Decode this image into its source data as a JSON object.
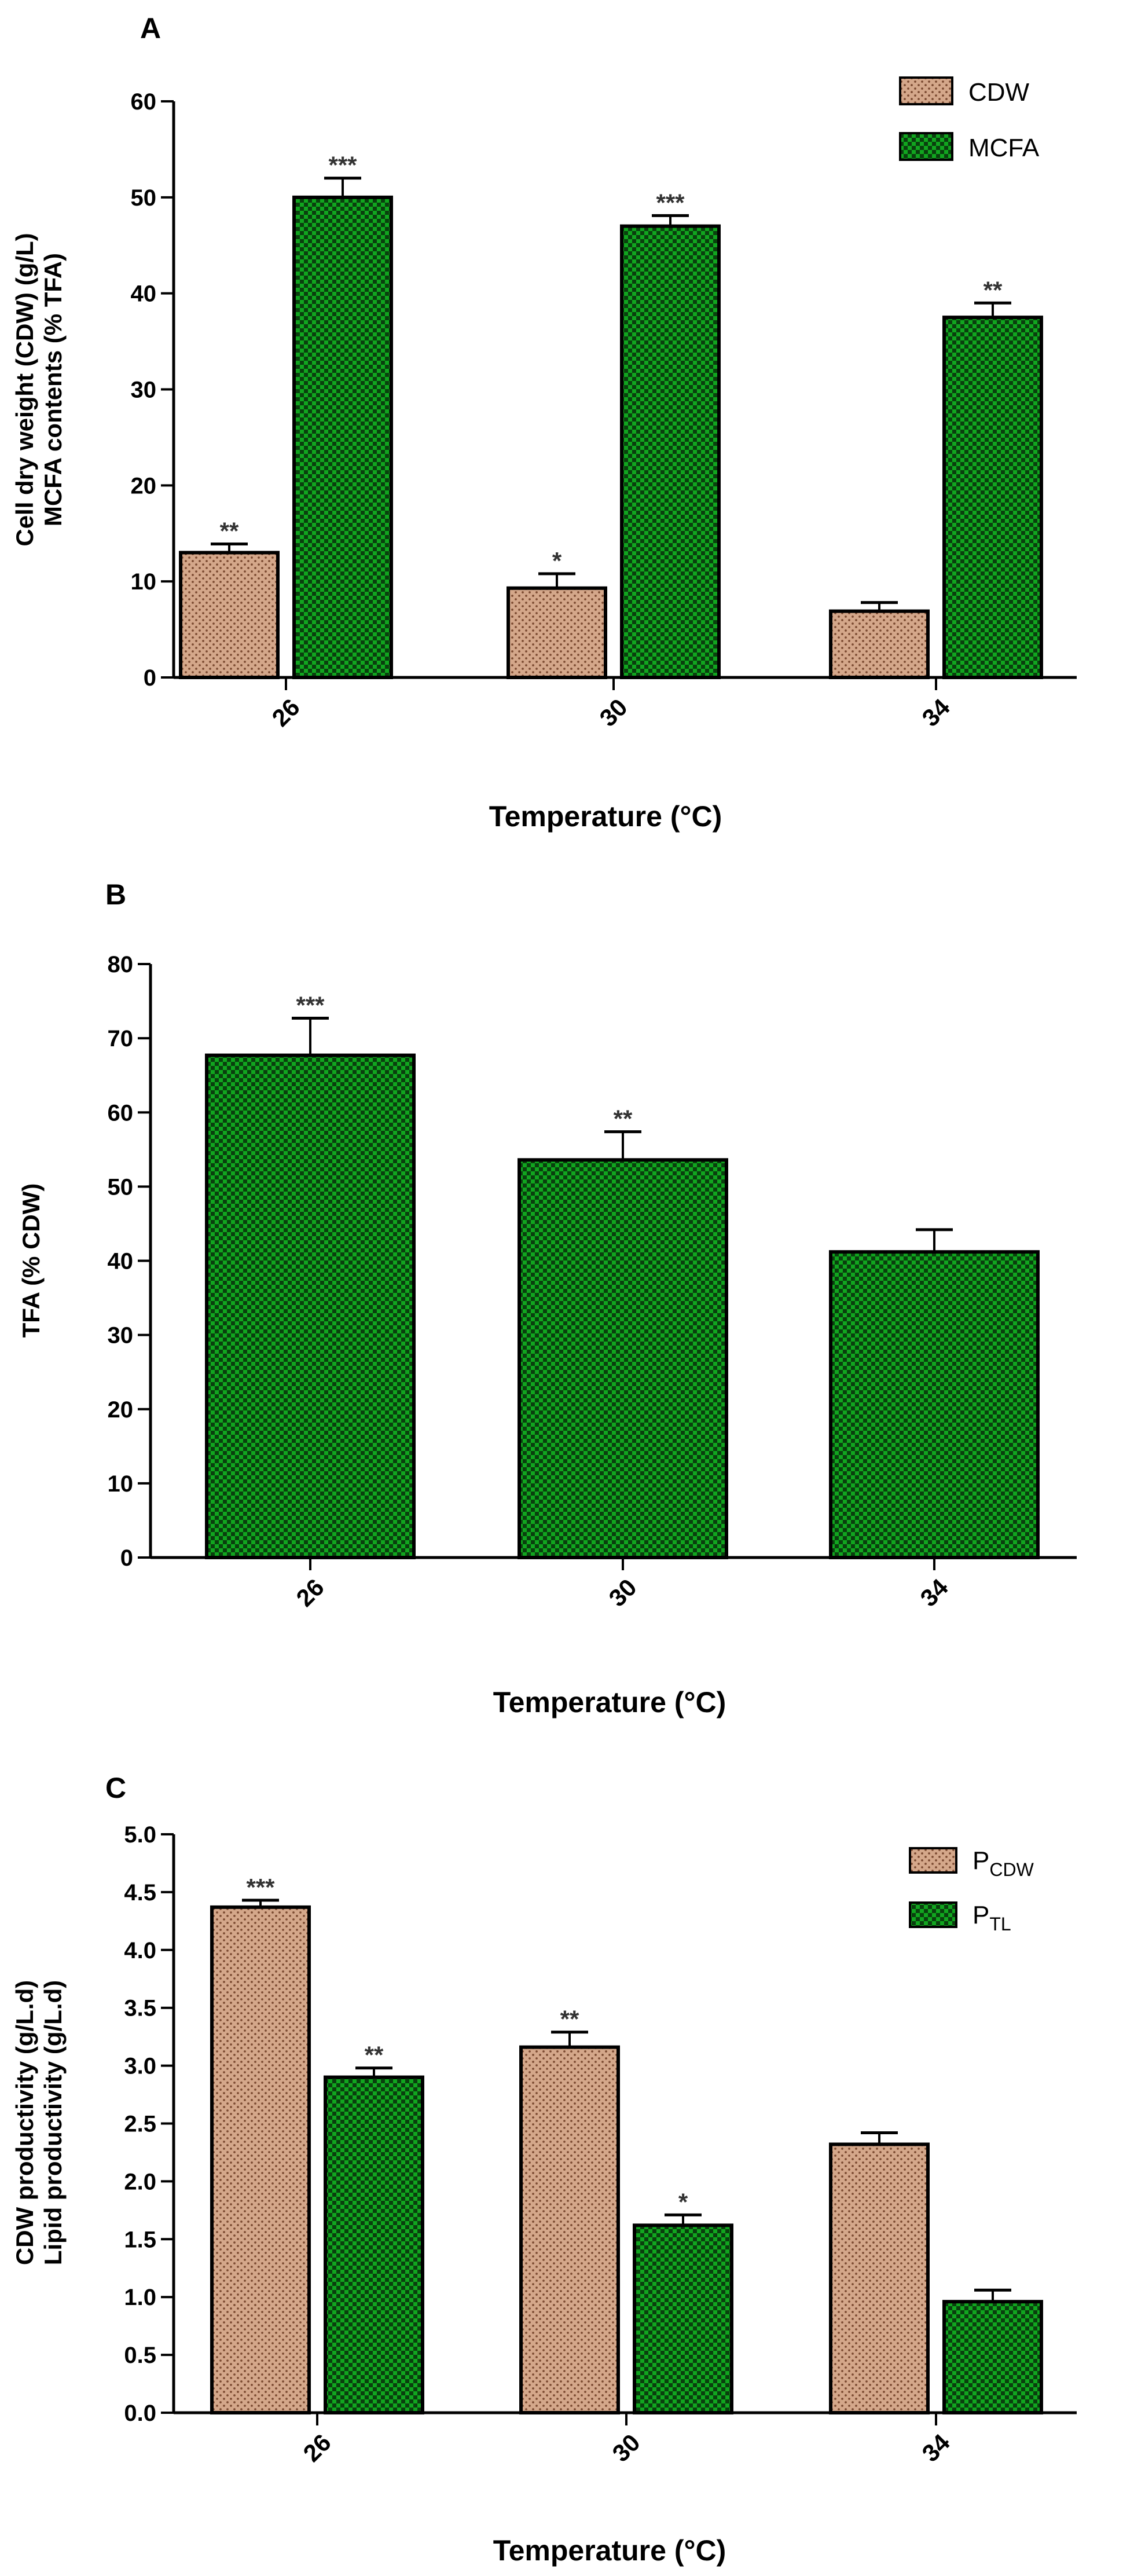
{
  "chart_data": [
    {
      "type": "bar",
      "panel": "A",
      "title": "",
      "xlabel": "Temperature (°C)",
      "ylabel_lines": [
        "Cell dry weight (CDW) (g/L)",
        "MCFA contents (% TFA)"
      ],
      "categories": [
        "26",
        "30",
        "34"
      ],
      "ylim": [
        0,
        60
      ],
      "yticks": [
        "0",
        "10",
        "20",
        "30",
        "40",
        "50",
        "60"
      ],
      "legend_position": "top-right",
      "series": [
        {
          "name": "CDW",
          "pattern": "tan",
          "values": [
            13,
            9.3,
            6.9
          ],
          "errors": [
            0.9,
            1.5,
            0.9
          ],
          "sig": [
            "**",
            "*",
            ""
          ]
        },
        {
          "name": "MCFA",
          "pattern": "green",
          "values": [
            50,
            47,
            37.5
          ],
          "errors": [
            2,
            1.1,
            1.5
          ],
          "sig": [
            "***",
            "***",
            "**"
          ]
        }
      ]
    },
    {
      "type": "bar",
      "panel": "B",
      "title": "",
      "xlabel": "Temperature (°C)",
      "ylabel_lines": [
        "TFA (% CDW)"
      ],
      "categories": [
        "26",
        "30",
        "34"
      ],
      "ylim": [
        0,
        80
      ],
      "yticks": [
        "0",
        "10",
        "20",
        "30",
        "40",
        "50",
        "60",
        "70",
        "80"
      ],
      "legend_position": "none",
      "series": [
        {
          "name": "TFA",
          "pattern": "green",
          "values": [
            67.7,
            53.6,
            41.2
          ],
          "errors": [
            5,
            3.8,
            3
          ],
          "sig": [
            "***",
            "**",
            ""
          ]
        }
      ]
    },
    {
      "type": "bar",
      "panel": "C",
      "title": "",
      "xlabel": "Temperature (°C)",
      "ylabel_lines": [
        "CDW productivity (g/L.d)",
        "Lipid productivity (g/L.d)"
      ],
      "categories": [
        "26",
        "30",
        "34"
      ],
      "ylim": [
        0,
        5
      ],
      "yticks": [
        "0.0",
        "0.5",
        "1.0",
        "1.5",
        "2.0",
        "2.5",
        "3.0",
        "3.5",
        "4.0",
        "4.5",
        "5.0"
      ],
      "legend_position": "top-right",
      "series": [
        {
          "name": "P",
          "sub": "CDW",
          "pattern": "tan",
          "values": [
            4.37,
            3.16,
            2.32
          ],
          "errors": [
            0.06,
            0.13,
            0.1
          ],
          "sig": [
            "***",
            "**",
            ""
          ]
        },
        {
          "name": "P",
          "sub": "TL",
          "pattern": "green",
          "values": [
            2.9,
            1.62,
            0.96
          ],
          "errors": [
            0.08,
            0.09,
            0.1
          ],
          "sig": [
            "**",
            "*",
            ""
          ]
        }
      ]
    }
  ],
  "colors": {
    "tan_base": "#d4a78a",
    "tan_dot": "#7b4a31",
    "green_a": "#11a51f",
    "green_b": "#0a3f0e",
    "axis": "#000000",
    "sig_text": "#333333"
  }
}
